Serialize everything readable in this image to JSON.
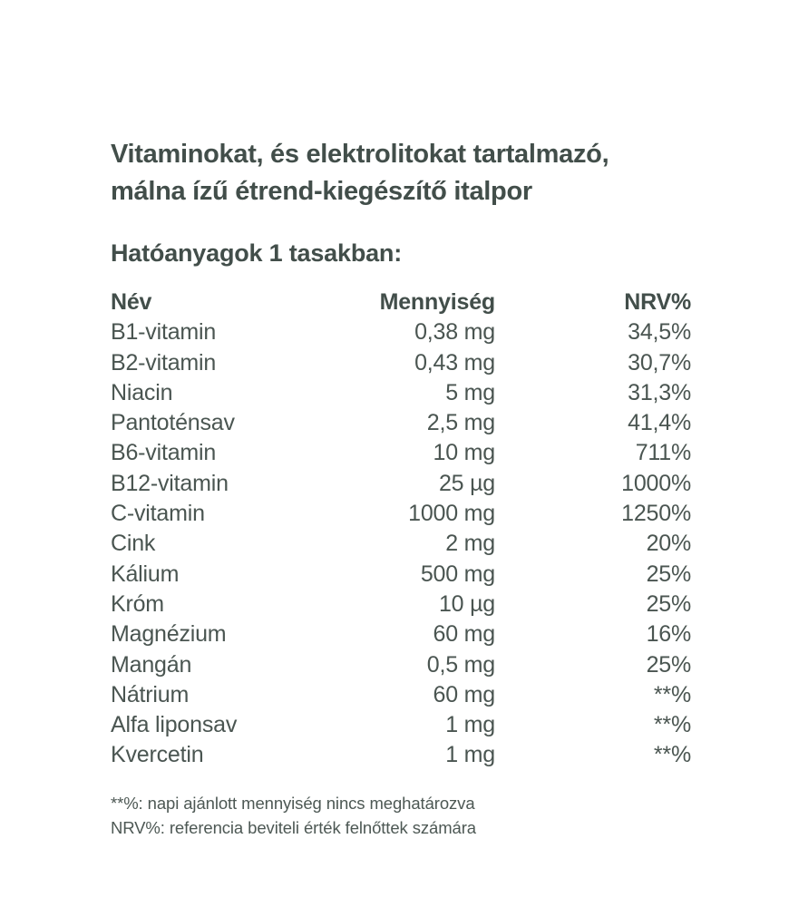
{
  "colors": {
    "background": "#ffffff",
    "text_dark": "#424e4a",
    "text_body": "#4a5551"
  },
  "title_lines": [
    "Vitaminokat, és elektrolitokat tartalmazó,",
    "málna ízű étrend-kiegészítő italpor"
  ],
  "section_heading": "Hatóanyagok 1 tasakban:",
  "table": {
    "columns": [
      "Név",
      "Mennyiség",
      "NRV%"
    ],
    "rows": [
      {
        "name": "B1-vitamin",
        "amount": "0,38 mg",
        "nrv": "34,5%"
      },
      {
        "name": "B2-vitamin",
        "amount": "0,43 mg",
        "nrv": "30,7%"
      },
      {
        "name": "Niacin",
        "amount": "5 mg",
        "nrv": "31,3%"
      },
      {
        "name": "Pantoténsav",
        "amount": "2,5 mg",
        "nrv": "41,4%"
      },
      {
        "name": "B6-vitamin",
        "amount": "10 mg",
        "nrv": "711%"
      },
      {
        "name": "B12-vitamin",
        "amount": "25 µg",
        "nrv": "1000%"
      },
      {
        "name": "C-vitamin",
        "amount": "1000 mg",
        "nrv": "1250%"
      },
      {
        "name": "Cink",
        "amount": "2 mg",
        "nrv": "20%"
      },
      {
        "name": "Kálium",
        "amount": "500 mg",
        "nrv": "25%"
      },
      {
        "name": "Króm",
        "amount": "10 µg",
        "nrv": "25%"
      },
      {
        "name": "Magnézium",
        "amount": "60 mg",
        "nrv": "16%"
      },
      {
        "name": "Mangán",
        "amount": "0,5 mg",
        "nrv": "25%"
      },
      {
        "name": "Nátrium",
        "amount": "60 mg",
        "nrv": "**%"
      },
      {
        "name": "Alfa liponsav",
        "amount": "1 mg",
        "nrv": "**%"
      },
      {
        "name": "Kvercetin",
        "amount": "1 mg",
        "nrv": "**%"
      }
    ]
  },
  "footnotes": [
    "**%: napi ajánlott mennyiség nincs meghatározva",
    "NRV%: referencia beviteli érték felnőttek számára"
  ]
}
